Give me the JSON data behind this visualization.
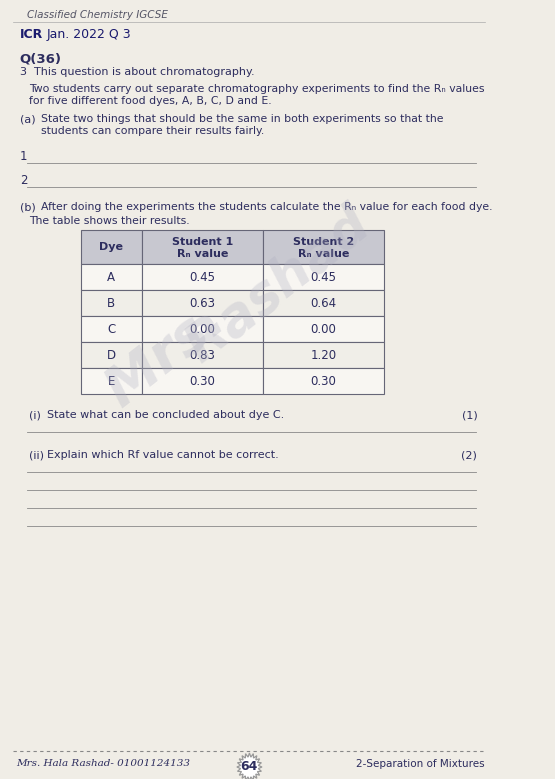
{
  "bg_color": "#e8e4dc",
  "page_bg": "#f0ede6",
  "header_text": "Classified Chemistry IGCSE",
  "subheader_text": "ICR Jan. 2022 Q 3",
  "question_num": "Q(36)",
  "q_intro": "3  This question is about chromatography.",
  "q_a_label": "(a)",
  "q_a_text1": "State two things that should be the same in both experiments so that the",
  "q_a_text2": "students can compare their results fairly.",
  "q_b_text": "(b)  After doing the experiments the students calculate the Rf value for each food dye.",
  "table_intro": "The table shows their results.",
  "table_data": [
    [
      "A",
      "0.45",
      "0.45"
    ],
    [
      "B",
      "0.63",
      "0.64"
    ],
    [
      "C",
      "0.00",
      "0.00"
    ],
    [
      "D",
      "0.83",
      "1.20"
    ],
    [
      "E",
      "0.30",
      "0.30"
    ]
  ],
  "q_i_label": "(i)",
  "q_i_text": "State what can be concluded about dye C.",
  "q_i_marks": "(1)",
  "q_ii_label": "(ii)",
  "q_ii_text": "Explain which Rf value cannot be correct.",
  "q_ii_marks": "(2)",
  "footer_left": "Mrs. Hala Rashad- 01001124133",
  "footer_center": "64",
  "footer_right": "2-Separation of Mixtures",
  "text_color": "#2d2d5e",
  "header_color": "#1a1a6e",
  "table_header_bg": "#c8c8d0",
  "line_color": "#999999",
  "watermark_color": "#b0b0c0"
}
